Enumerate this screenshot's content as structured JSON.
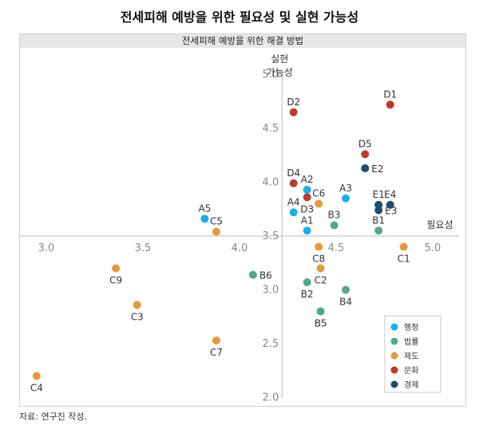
{
  "title": "전세피해 예방을 위한 필요성 및 실현 가능성",
  "source": "자료: 연구진 작성.",
  "chart_data": {
    "type": "scatter",
    "subtitle": "전세피해 예방을 위한 해결 방법",
    "xlabel": "필요성",
    "ylabel_line1": "실현",
    "ylabel_line2": "가능성",
    "xlim": [
      2.9,
      5.2
    ],
    "ylim": [
      2.0,
      5.0
    ],
    "x_cross": 4.22,
    "y_cross": 3.5,
    "x_ticks": [
      {
        "value": 3.0,
        "label": "3.0"
      },
      {
        "value": 3.5,
        "label": "3.5"
      },
      {
        "value": 4.0,
        "label": "4.0"
      },
      {
        "value": 4.5,
        "label": "4.5"
      },
      {
        "value": 5.0,
        "label": "5.0"
      }
    ],
    "y_ticks": [
      {
        "value": 2.0,
        "label": "2.0"
      },
      {
        "value": 2.5,
        "label": "2.5"
      },
      {
        "value": 3.0,
        "label": "3.0"
      },
      {
        "value": 3.5,
        "label": "3.5"
      },
      {
        "value": 4.0,
        "label": "4.0"
      },
      {
        "value": 4.5,
        "label": "4.5"
      },
      {
        "value": 5.0,
        "label": "5.0"
      }
    ],
    "legend_position": "bottom-right",
    "series": [
      {
        "name": "행정",
        "color": "#13b1ef",
        "points": [
          {
            "id": "A1",
            "x": 4.35,
            "y": 3.55,
            "label_pos": "above"
          },
          {
            "id": "A2",
            "x": 4.35,
            "y": 3.93,
            "label_pos": "above"
          },
          {
            "id": "A3",
            "x": 4.55,
            "y": 3.85,
            "label_pos": "above"
          },
          {
            "id": "A4",
            "x": 4.28,
            "y": 3.72,
            "label_pos": "above"
          },
          {
            "id": "A5",
            "x": 3.82,
            "y": 3.66,
            "label_pos": "above"
          }
        ]
      },
      {
        "name": "법률",
        "color": "#4ea88f",
        "points": [
          {
            "id": "B1",
            "x": 4.72,
            "y": 3.55,
            "label_pos": "above"
          },
          {
            "id": "B2",
            "x": 4.35,
            "y": 3.07,
            "label_pos": "below"
          },
          {
            "id": "B3",
            "x": 4.49,
            "y": 3.6,
            "label_pos": "above"
          },
          {
            "id": "B4",
            "x": 4.55,
            "y": 3.0,
            "label_pos": "below"
          },
          {
            "id": "B5",
            "x": 4.42,
            "y": 2.8,
            "label_pos": "below"
          },
          {
            "id": "B6",
            "x": 4.07,
            "y": 3.14,
            "label_pos": "right"
          }
        ]
      },
      {
        "name": "제도",
        "color": "#e59a3a",
        "points": [
          {
            "id": "C1",
            "x": 4.85,
            "y": 3.4,
            "label_pos": "below"
          },
          {
            "id": "C2",
            "x": 4.42,
            "y": 3.2,
            "label_pos": "below"
          },
          {
            "id": "C3",
            "x": 3.47,
            "y": 2.86,
            "label_pos": "below"
          },
          {
            "id": "C4",
            "x": 2.95,
            "y": 2.2,
            "label_pos": "below"
          },
          {
            "id": "C5",
            "x": 3.88,
            "y": 3.54,
            "label_pos": "above"
          },
          {
            "id": "C6",
            "x": 4.41,
            "y": 3.8,
            "label_pos": "above"
          },
          {
            "id": "C7",
            "x": 3.88,
            "y": 2.53,
            "label_pos": "below"
          },
          {
            "id": "C8",
            "x": 4.41,
            "y": 3.4,
            "label_pos": "below"
          },
          {
            "id": "C9",
            "x": 3.36,
            "y": 3.2,
            "label_pos": "below"
          }
        ]
      },
      {
        "name": "문화",
        "color": "#c0392b",
        "points": [
          {
            "id": "D1",
            "x": 4.78,
            "y": 4.72,
            "label_pos": "above"
          },
          {
            "id": "D2",
            "x": 4.28,
            "y": 4.65,
            "label_pos": "above"
          },
          {
            "id": "D3",
            "x": 4.35,
            "y": 3.86,
            "label_pos": "below"
          },
          {
            "id": "D4",
            "x": 4.28,
            "y": 3.99,
            "label_pos": "above"
          },
          {
            "id": "D5",
            "x": 4.65,
            "y": 4.26,
            "label_pos": "above"
          }
        ]
      },
      {
        "name": "경제",
        "color": "#1b4f72",
        "points": [
          {
            "id": "E1",
            "x": 4.72,
            "y": 3.79,
            "label_pos": "above"
          },
          {
            "id": "E2",
            "x": 4.65,
            "y": 4.13,
            "label_pos": "right"
          },
          {
            "id": "E3",
            "x": 4.72,
            "y": 3.74,
            "label_pos": "right"
          },
          {
            "id": "E4",
            "x": 4.78,
            "y": 3.79,
            "label_pos": "above"
          }
        ]
      }
    ]
  }
}
